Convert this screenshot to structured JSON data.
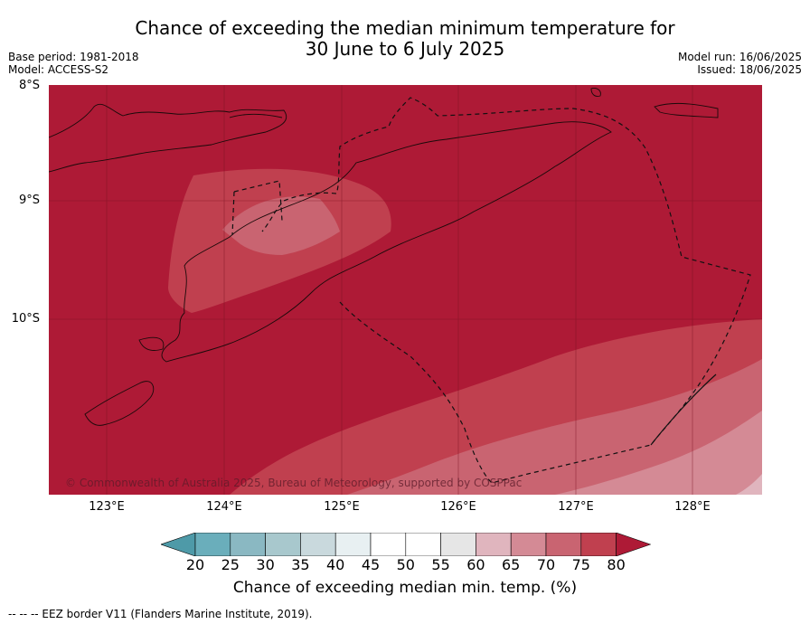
{
  "title": {
    "line1": "Chance of exceeding the median minimum temperature for",
    "line2": "30 June to 6 July 2025"
  },
  "meta": {
    "base_period": "Base period: 1981-2018",
    "model": "Model: ACCESS-S2",
    "model_run": "Model run: 16/06/2025",
    "issued": "Issued: 18/06/2025"
  },
  "map": {
    "lat_labels": [
      "8°S",
      "9°S",
      "10°S"
    ],
    "lon_labels": [
      "123°E",
      "124°E",
      "125°E",
      "126°E",
      "127°E",
      "128°E"
    ],
    "copyright": "© Commonwealth of Australia 2025, Bureau of Meteorology, supported by COSPPac",
    "dominant_category": "80+"
  },
  "colorbar": {
    "ticks": [
      "20",
      "25",
      "30",
      "35",
      "40",
      "45",
      "50",
      "55",
      "60",
      "65",
      "70",
      "75",
      "80"
    ],
    "colors": [
      "#4e9aa8",
      "#6aaebb",
      "#8ab8c2",
      "#a8c8cd",
      "#c9d9dd",
      "#e8f0f2",
      "#ffffff",
      "#ffffff",
      "#e6e6e6",
      "#e0b5be",
      "#d48a95",
      "#c96471",
      "#c0404f",
      "#ae1a36"
    ],
    "label": "Chance of exceeding median min. temp. (%)"
  },
  "footer": {
    "legend": "--  --  -- EEZ border V11 (Flanders Marine Institute, 2019)."
  }
}
